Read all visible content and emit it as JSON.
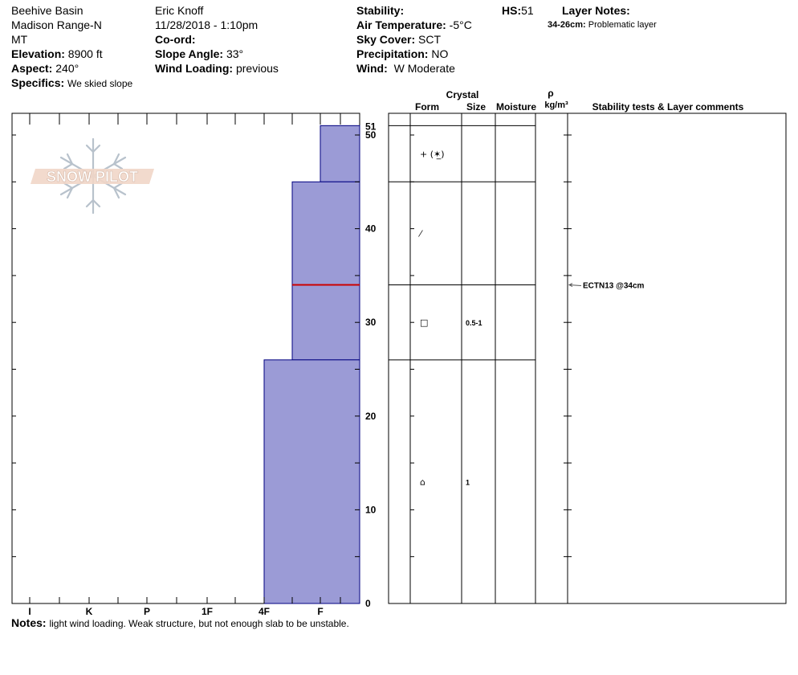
{
  "header": {
    "location": "Beehive Basin",
    "range": "Madison Range-N",
    "state": "MT",
    "elevation_label": "Elevation:",
    "elevation_value": "8900 ft",
    "aspect_label": "Aspect:",
    "aspect_value": "240°",
    "specifics_label": "Specifics:",
    "specifics_value": "We skied slope",
    "observer": "Eric Knoff",
    "datetime": "11/28/2018 - 1:10pm",
    "coord_label": "Co-ord:",
    "slope_label": "Slope Angle:",
    "slope_value": "33°",
    "wind_loading_label": "Wind Loading:",
    "wind_loading_value": "previous",
    "stability_label": "Stability:",
    "air_temp_label": "Air Temperature:",
    "air_temp_value": "-5°C",
    "sky_label": "Sky Cover:",
    "sky_value": "SCT",
    "precip_label": "Precipitation:",
    "precip_value": "NO",
    "wind_label": "Wind:",
    "wind_value": "W Moderate",
    "hs_label": "HS:",
    "hs_value": "51",
    "layer_notes_label": "Layer Notes:",
    "layer_note_range": "34-26cm:",
    "layer_note_text": "Problematic layer"
  },
  "logo_text": "SNOW PILOT",
  "columns": {
    "crystal": "Crystal",
    "form": "Form",
    "size": "Size",
    "moisture": "Moisture",
    "rho": "ρ",
    "density_unit": "kg/m³",
    "stability": "Stability tests & Layer comments"
  },
  "notes_label": "Notes:",
  "notes_value": "light wind loading. Weak structure, but not enough slab to be unstable.",
  "colors": {
    "hardness_fill": "#9b9bd6",
    "hardness_stroke": "#000080",
    "critical_line": "#cc0000"
  },
  "chart_data": {
    "type": "bar",
    "title": "",
    "xlabel": "",
    "ylabel": "",
    "hardness_scale": [
      "I",
      "K",
      "P",
      "1F",
      "4F",
      "F"
    ],
    "ylim": [
      0,
      52
    ],
    "y_ticks": [
      0,
      10,
      20,
      30,
      40,
      50
    ],
    "hs_tick": "51",
    "layers": [
      {
        "top": 51,
        "bottom": 45,
        "hardness": "F"
      },
      {
        "top": 45,
        "bottom": 34,
        "hardness": "F+"
      },
      {
        "top": 34,
        "bottom": 26,
        "hardness": "F+"
      },
      {
        "top": 26,
        "bottom": 0,
        "hardness": "4F-"
      }
    ],
    "critical_layer_depth": 34,
    "grain_forms": [
      {
        "depth": 48,
        "symbol": "+ (✶̲)",
        "size": ""
      },
      {
        "depth": 39.5,
        "symbol": "⁄",
        "size": ""
      },
      {
        "depth": 30,
        "symbol": "□",
        "size": "0.5-1"
      },
      {
        "depth": 13,
        "symbol": "⌂",
        "size": "1"
      }
    ],
    "stability_tests": [
      {
        "depth": 34,
        "label": "ECTN13 @34cm"
      }
    ]
  }
}
